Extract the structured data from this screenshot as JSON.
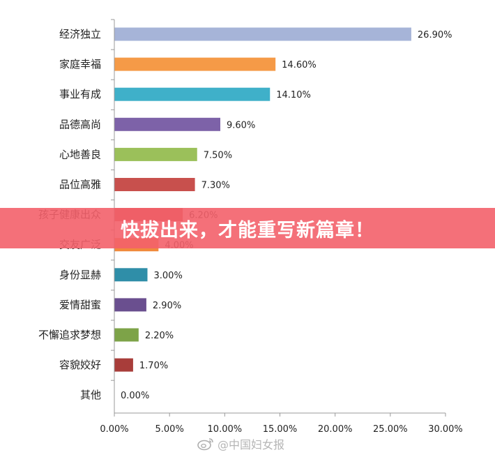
{
  "banner": {
    "text": "快拔出来，才能重写新篇章！"
  },
  "watermark": {
    "text": "@中国妇女报",
    "icon": "weibo-icon"
  },
  "chart_data": {
    "type": "bar",
    "orientation": "horizontal",
    "categories": [
      "经济独立",
      "家庭幸福",
      "事业有成",
      "品德高尚",
      "心地善良",
      "品位高雅",
      "孩子健康出众",
      "交友广泛",
      "身份显赫",
      "爱情甜蜜",
      "不懈追求梦想",
      "容貌姣好",
      "其他"
    ],
    "values": [
      26.9,
      14.6,
      14.1,
      9.6,
      7.5,
      7.3,
      6.2,
      4.0,
      3.0,
      2.9,
      2.2,
      1.7,
      0.0
    ],
    "value_labels": [
      "26.90%",
      "14.60%",
      "14.10%",
      "9.60%",
      "7.50%",
      "7.30%",
      "6.20%",
      "4.00%",
      "3.00%",
      "2.90%",
      "2.20%",
      "1.70%",
      "0.00%"
    ],
    "colors": [
      "#a6b4d8",
      "#f59a47",
      "#3fb0c9",
      "#7d62a8",
      "#9bc05a",
      "#c8504d",
      "#c8504d",
      "#f08a3c",
      "#2f8ea8",
      "#6a4f8f",
      "#7da348",
      "#a83d3a",
      "#a83d3a"
    ],
    "xlim": [
      0,
      30
    ],
    "xticks": [
      "0.00%",
      "5.00%",
      "10.00%",
      "15.00%",
      "20.00%",
      "25.00%",
      "30.00%"
    ],
    "grid": false,
    "title": "",
    "xlabel": "",
    "ylabel": ""
  }
}
